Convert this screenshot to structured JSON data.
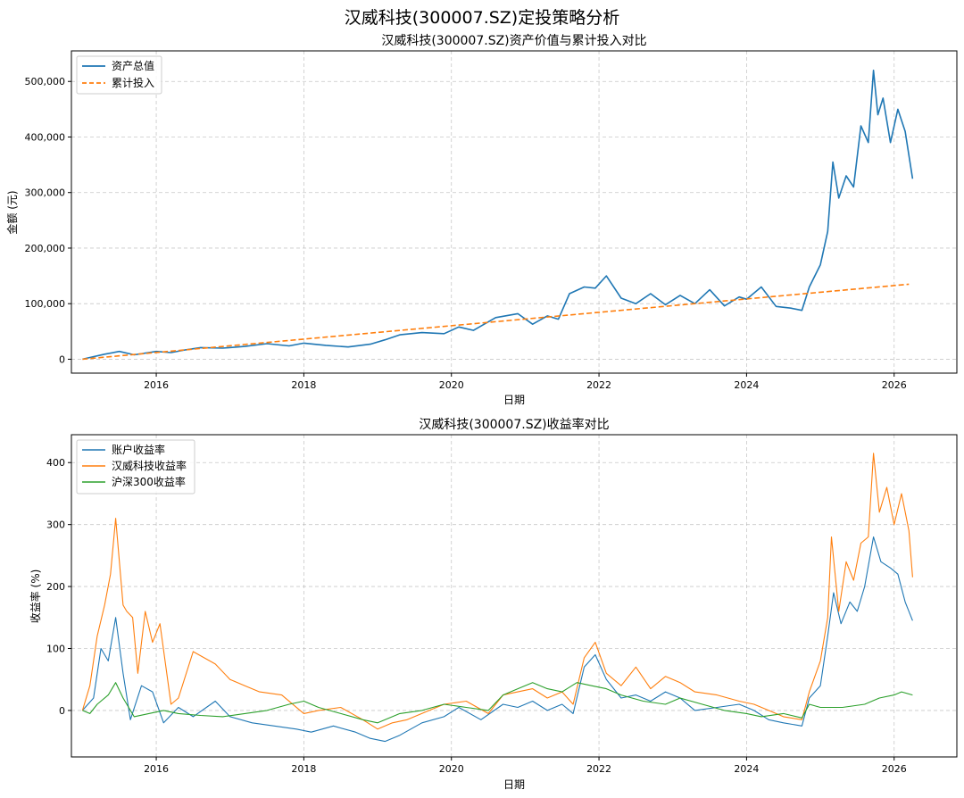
{
  "figure": {
    "suptitle": "汉威科技(300007.SZ)定投策略分析"
  },
  "colors": {
    "blue": "#1f77b4",
    "orange": "#ff7f0e",
    "green": "#2ca02c",
    "grid": "#b0b0b0"
  },
  "chart_data": [
    {
      "type": "line",
      "title": "汉威科技(300007.SZ)资产价值与累计投入对比",
      "xlabel": "日期",
      "ylabel": "金额 (元)",
      "xlim": [
        2014.85,
        2026.85
      ],
      "ylim": [
        -25000,
        555000
      ],
      "xticks": [
        2016,
        2018,
        2020,
        2022,
        2024,
        2026
      ],
      "xticklabels": [
        "2016",
        "2018",
        "2020",
        "2022",
        "2024",
        "2026"
      ],
      "yticks": [
        0,
        100000,
        200000,
        300000,
        400000,
        500000
      ],
      "yticklabels": [
        "0",
        "100,000",
        "200,000",
        "300,000",
        "400,000",
        "500,000"
      ],
      "grid": true,
      "legend_position": "upper-left",
      "series": [
        {
          "name": "资产总值",
          "color": "#1f77b4",
          "style": "solid",
          "x": [
            2015.0,
            2015.3,
            2015.5,
            2015.7,
            2016.0,
            2016.2,
            2016.4,
            2016.6,
            2016.9,
            2017.2,
            2017.5,
            2017.8,
            2018.0,
            2018.3,
            2018.6,
            2018.9,
            2019.1,
            2019.3,
            2019.6,
            2019.9,
            2020.1,
            2020.3,
            2020.6,
            2020.9,
            2021.1,
            2021.3,
            2021.45,
            2021.6,
            2021.8,
            2021.95,
            2022.1,
            2022.3,
            2022.5,
            2022.7,
            2022.9,
            2023.1,
            2023.3,
            2023.5,
            2023.7,
            2023.9,
            2024.0,
            2024.2,
            2024.4,
            2024.6,
            2024.75,
            2024.85,
            2025.0,
            2025.1,
            2025.17,
            2025.25,
            2025.35,
            2025.45,
            2025.55,
            2025.65,
            2025.72,
            2025.78,
            2025.85,
            2025.95,
            2026.05,
            2026.15,
            2026.25
          ],
          "y": [
            0,
            9000,
            14000,
            8000,
            14000,
            12000,
            17000,
            21000,
            20000,
            23000,
            28000,
            24000,
            29000,
            25000,
            22000,
            27000,
            35000,
            44000,
            48000,
            46000,
            58000,
            52000,
            75000,
            82000,
            63000,
            78000,
            72000,
            118000,
            130000,
            128000,
            150000,
            110000,
            100000,
            118000,
            98000,
            115000,
            100000,
            125000,
            96000,
            112000,
            108000,
            130000,
            95000,
            92000,
            88000,
            130000,
            170000,
            230000,
            355000,
            290000,
            330000,
            310000,
            420000,
            390000,
            520000,
            440000,
            470000,
            390000,
            450000,
            410000,
            325000
          ]
        },
        {
          "name": "累计投入",
          "color": "#ff7f0e",
          "style": "dashed",
          "x": [
            2015.0,
            2026.2
          ],
          "y": [
            0,
            135000
          ]
        }
      ]
    },
    {
      "type": "line",
      "title": "汉威科技(300007.SZ)收益率对比",
      "xlabel": "日期",
      "ylabel": "收益率 (%)",
      "xlim": [
        2014.85,
        2026.85
      ],
      "ylim": [
        -75,
        445
      ],
      "xticks": [
        2016,
        2018,
        2020,
        2022,
        2024,
        2026
      ],
      "xticklabels": [
        "2016",
        "2018",
        "2020",
        "2022",
        "2024",
        "2026"
      ],
      "yticks": [
        0,
        100,
        200,
        300,
        400
      ],
      "yticklabels": [
        "0",
        "100",
        "200",
        "300",
        "400"
      ],
      "grid": true,
      "legend_position": "upper-left",
      "series": [
        {
          "name": "账户收益率",
          "color": "#1f77b4",
          "style": "solid",
          "x": [
            2015.0,
            2015.15,
            2015.25,
            2015.35,
            2015.45,
            2015.55,
            2015.65,
            2015.8,
            2015.95,
            2016.1,
            2016.3,
            2016.5,
            2016.8,
            2017.0,
            2017.3,
            2017.6,
            2017.9,
            2018.1,
            2018.4,
            2018.7,
            2018.9,
            2019.1,
            2019.3,
            2019.6,
            2019.9,
            2020.1,
            2020.4,
            2020.7,
            2020.9,
            2021.1,
            2021.3,
            2021.5,
            2021.65,
            2021.8,
            2021.95,
            2022.1,
            2022.3,
            2022.5,
            2022.7,
            2022.9,
            2023.1,
            2023.3,
            2023.6,
            2023.9,
            2024.1,
            2024.3,
            2024.5,
            2024.75,
            2024.85,
            2025.0,
            2025.1,
            2025.18,
            2025.28,
            2025.4,
            2025.5,
            2025.6,
            2025.72,
            2025.82,
            2025.95,
            2026.05,
            2026.15,
            2026.25
          ],
          "y": [
            0,
            20,
            100,
            80,
            150,
            60,
            -15,
            40,
            30,
            -20,
            5,
            -10,
            15,
            -10,
            -20,
            -25,
            -30,
            -35,
            -25,
            -35,
            -45,
            -50,
            -40,
            -20,
            -10,
            5,
            -15,
            10,
            5,
            15,
            0,
            10,
            -5,
            70,
            90,
            50,
            20,
            25,
            15,
            30,
            20,
            0,
            5,
            10,
            0,
            -15,
            -20,
            -25,
            20,
            40,
            120,
            190,
            140,
            175,
            160,
            200,
            280,
            240,
            230,
            220,
            175,
            145
          ]
        },
        {
          "name": "汉威科技收益率",
          "color": "#ff7f0e",
          "style": "solid",
          "x": [
            2015.0,
            2015.1,
            2015.2,
            2015.3,
            2015.38,
            2015.45,
            2015.55,
            2015.6,
            2015.68,
            2015.75,
            2015.85,
            2015.95,
            2016.05,
            2016.2,
            2016.3,
            2016.5,
            2016.8,
            2017.0,
            2017.2,
            2017.4,
            2017.7,
            2018.0,
            2018.2,
            2018.5,
            2018.8,
            2019.0,
            2019.2,
            2019.4,
            2019.7,
            2019.9,
            2020.2,
            2020.5,
            2020.7,
            2020.9,
            2021.1,
            2021.3,
            2021.5,
            2021.65,
            2021.8,
            2021.95,
            2022.1,
            2022.3,
            2022.5,
            2022.7,
            2022.9,
            2023.1,
            2023.3,
            2023.6,
            2023.9,
            2024.1,
            2024.3,
            2024.5,
            2024.75,
            2024.85,
            2025.0,
            2025.1,
            2025.15,
            2025.25,
            2025.35,
            2025.45,
            2025.55,
            2025.65,
            2025.72,
            2025.8,
            2025.9,
            2026.0,
            2026.1,
            2026.2,
            2026.25
          ],
          "y": [
            0,
            40,
            120,
            170,
            220,
            310,
            170,
            160,
            150,
            60,
            160,
            110,
            140,
            10,
            20,
            95,
            75,
            50,
            40,
            30,
            25,
            -5,
            0,
            5,
            -15,
            -30,
            -20,
            -15,
            0,
            10,
            15,
            -5,
            25,
            30,
            35,
            20,
            30,
            10,
            85,
            110,
            60,
            40,
            70,
            35,
            55,
            45,
            30,
            25,
            15,
            10,
            0,
            -10,
            -15,
            30,
            80,
            150,
            280,
            160,
            240,
            210,
            270,
            280,
            415,
            320,
            360,
            300,
            350,
            290,
            215
          ]
        },
        {
          "name": "沪深300收益率",
          "color": "#2ca02c",
          "style": "solid",
          "x": [
            2015.0,
            2015.1,
            2015.2,
            2015.35,
            2015.45,
            2015.55,
            2015.7,
            2015.9,
            2016.1,
            2016.3,
            2016.6,
            2016.9,
            2017.2,
            2017.5,
            2017.8,
            2018.0,
            2018.2,
            2018.5,
            2018.8,
            2019.0,
            2019.3,
            2019.6,
            2019.9,
            2020.2,
            2020.5,
            2020.7,
            2020.9,
            2021.1,
            2021.3,
            2021.5,
            2021.7,
            2021.9,
            2022.1,
            2022.3,
            2022.6,
            2022.9,
            2023.1,
            2023.4,
            2023.7,
            2024.0,
            2024.2,
            2024.5,
            2024.75,
            2024.85,
            2025.0,
            2025.3,
            2025.6,
            2025.8,
            2026.0,
            2026.1,
            2026.25
          ],
          "y": [
            0,
            -5,
            10,
            25,
            45,
            20,
            -10,
            -5,
            0,
            -5,
            -8,
            -10,
            -5,
            0,
            10,
            15,
            5,
            -5,
            -15,
            -20,
            -5,
            0,
            10,
            5,
            0,
            25,
            35,
            45,
            35,
            30,
            45,
            40,
            35,
            25,
            15,
            10,
            20,
            10,
            0,
            -5,
            -10,
            -5,
            -12,
            10,
            5,
            5,
            10,
            20,
            25,
            30,
            25
          ]
        }
      ]
    }
  ]
}
